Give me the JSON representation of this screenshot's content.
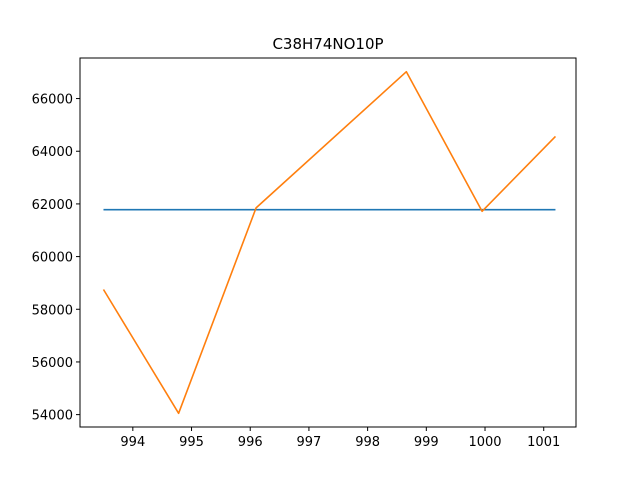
{
  "chart_data": {
    "type": "line",
    "title": "C38H74NO10P",
    "xlabel": "",
    "ylabel": "",
    "xlim": [
      993.1,
      1001.55
    ],
    "ylim": [
      53530,
      67540
    ],
    "x_ticks": [
      994,
      995,
      996,
      997,
      998,
      999,
      1000,
      1001
    ],
    "y_ticks": [
      54000,
      56000,
      58000,
      60000,
      62000,
      64000,
      66000
    ],
    "grid": false,
    "legend": "none",
    "series": [
      {
        "color": "#1f77b4",
        "x": [
          993.5,
          1001.2
        ],
        "y": [
          61780,
          61780
        ]
      },
      {
        "color": "#ff7f0e",
        "x": [
          993.5,
          994.78,
          996.1,
          998.66,
          999.95,
          1001.2
        ],
        "y": [
          58750,
          54050,
          61850,
          67020,
          61720,
          64560
        ]
      }
    ]
  }
}
